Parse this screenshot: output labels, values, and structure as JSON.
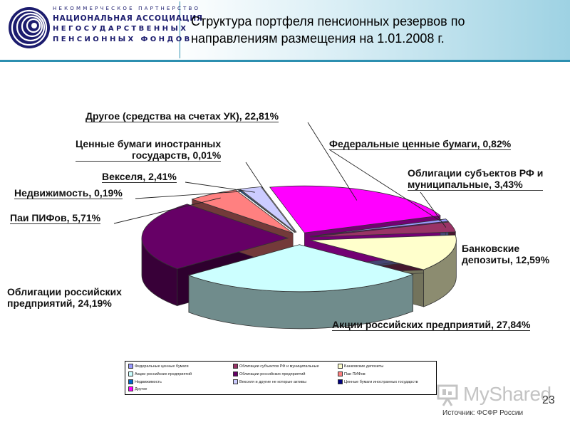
{
  "header": {
    "org_lines": [
      "НЕКОММЕРЧЕСКОЕ ПАРТНЕРСТВО",
      "НАЦИОНАЛЬНАЯ АССОЦИАЦИЯ",
      "НЕГОСУДАРСТВЕННЫХ",
      "ПЕНСИОННЫХ ФОНДОВ"
    ],
    "title_line1": "Структура портфеля пенсионных резервов по",
    "title_line2": "направлениям размещения на 1.01.2008 г."
  },
  "chart_data": {
    "type": "pie",
    "title": "Структура портфеля пенсионных резервов по направлениям размещения на 1.01.2008 г.",
    "unit": "%",
    "slices": [
      {
        "name": "Федеральные ценные бумаги",
        "value": 0.82,
        "label": "Федеральные ценные бумаги, 0,82%",
        "color": "#9999ff"
      },
      {
        "name": "Облигации субъектов РФ и муниципальные",
        "value": 3.43,
        "label_line1": "Облигации субъектов РФ и",
        "label_line2": "муниципальные, 3,43%",
        "color": "#993366"
      },
      {
        "name": "Банковские депозиты",
        "value": 12.59,
        "label_line1": "Банковские",
        "label_line2": "депозиты, 12,59%",
        "color": "#ffffcc"
      },
      {
        "name": "Акции российских предприятий",
        "value": 27.84,
        "label": "Акции российских предприятий, 27,84%",
        "color": "#ccffff"
      },
      {
        "name": "Облигации российских предприятий",
        "value": 24.19,
        "label_line1": "Облигации российских",
        "label_line2": "предприятий, 24,19%",
        "color": "#660066"
      },
      {
        "name": "Паи ПИФов",
        "value": 5.71,
        "label": "Паи ПИФов, 5,71%",
        "color": "#ff8080"
      },
      {
        "name": "Недвижимость",
        "value": 0.19,
        "label": "Недвижимость, 0,19%",
        "color": "#0066cc"
      },
      {
        "name": "Векселя и другие не которые активы",
        "value": 2.41,
        "label": "Векселя, 2,41%",
        "color": "#ccccff"
      },
      {
        "name": "Ценные бумаги иностранных государств",
        "value": 0.01,
        "label_line1": "Ценные бумаги иностранных",
        "label_line2": "государств, 0,01%",
        "color": "#000080"
      },
      {
        "name": "Другое",
        "value": 22.81,
        "label": "Другое (средства на счетах УК), 22,81%",
        "color": "#ff00ff"
      }
    ],
    "legend": {
      "placement": "bottom",
      "entries": [
        "Федеральные ценные бумаги",
        "Облигации субъектов РФ и муниципальные",
        "Банковские депозиты",
        "Акции российских предприятий",
        "Облигации российских предприятий",
        "Паи ПИФов",
        "Недвижимость",
        "Векселя и другие не которые активы",
        "Ценные бумаги иностранных государств",
        "Другое"
      ]
    }
  },
  "watermark": "MyShared",
  "page_number": "23",
  "source": "Источник: ФСФР России",
  "colors": {
    "accent": "#2c8fb0",
    "logo": "#1c1c6e"
  }
}
